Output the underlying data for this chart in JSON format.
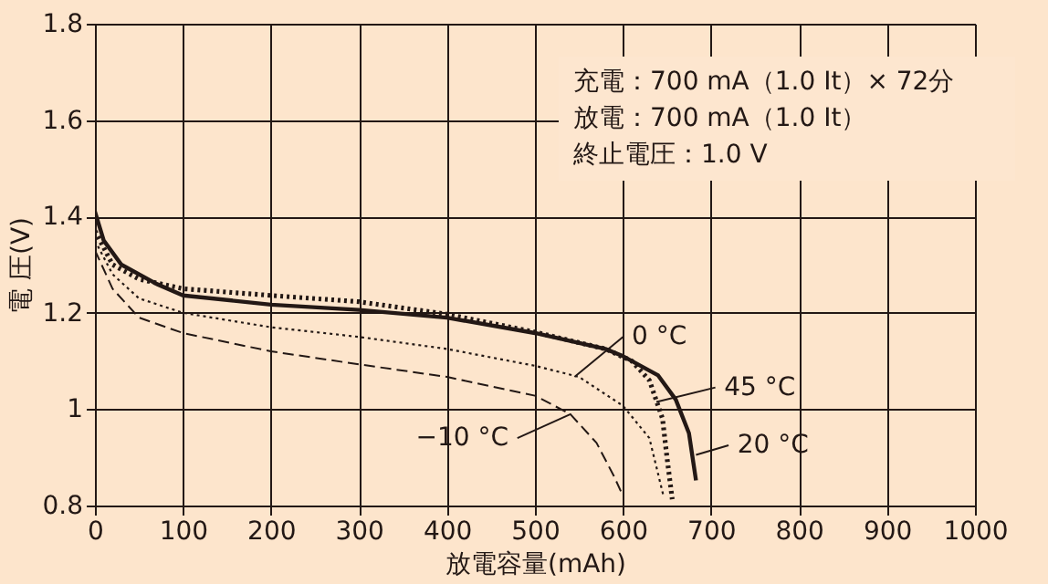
{
  "chart_data": {
    "type": "line",
    "xlabel": "放電容量(mAh)",
    "ylabel": "電 圧(V)",
    "xlim": [
      0,
      1000
    ],
    "xticks": [
      0,
      100,
      200,
      300,
      400,
      500,
      600,
      700,
      800,
      900,
      {
        "value": 1000,
        "label": "1000"
      }
    ],
    "ylim": [
      0.8,
      1.8
    ],
    "yticks": [
      0.8,
      {
        "value": 1,
        "label": "1"
      },
      1.2,
      1.4,
      1.6,
      1.8
    ],
    "grid": true,
    "marker": "none",
    "series": [
      {
        "color": "#231815",
        "line_style": "solid",
        "x": [
          0,
          10,
          30,
          70,
          100,
          200,
          300,
          400,
          500,
          580,
          600,
          640,
          660,
          675,
          683
        ],
        "values": [
          1.41,
          1.35,
          1.3,
          1.26,
          1.236,
          1.217,
          1.206,
          1.19,
          1.158,
          1.125,
          1.11,
          1.07,
          1.02,
          0.95,
          0.852
        ]
      },
      {
        "color": "#231815",
        "line_style": "dotted",
        "x": [
          0,
          20,
          50,
          100,
          200,
          300,
          400,
          500,
          580,
          610,
          630,
          645,
          650,
          656
        ],
        "values": [
          1.37,
          1.3,
          1.27,
          1.25,
          1.236,
          1.223,
          1.197,
          1.16,
          1.125,
          1.1,
          1.06,
          0.98,
          0.9,
          0.813
        ]
      },
      {
        "color": "#231815",
        "line_style": "dotted",
        "x": [
          0,
          20,
          50,
          100,
          200,
          300,
          400,
          500,
          550,
          600,
          630,
          646
        ],
        "values": [
          1.35,
          1.28,
          1.23,
          1.2,
          1.17,
          1.15,
          1.125,
          1.09,
          1.067,
          1.007,
          0.94,
          0.82
        ]
      },
      {
        "color": "#231815",
        "line_style": "dashed",
        "x": [
          0,
          20,
          50,
          100,
          200,
          300,
          400,
          500,
          540,
          570,
          590,
          600
        ],
        "values": [
          1.33,
          1.25,
          1.19,
          1.158,
          1.12,
          1.093,
          1.067,
          1.028,
          0.99,
          0.93,
          0.86,
          0.82
        ]
      }
    ],
    "annotations": [
      "充電：700 mA（1.0 It）× 72分",
      "放電：700 mA（1.0 It）",
      "終止電圧：1.0 V",
      {
        "text": "0 °C",
        "x": 545,
        "y": 1.067
      },
      {
        "text": "45 °C",
        "x": 638,
        "y": 1.015
      },
      {
        "text": "20 °C",
        "x": 683,
        "y": 0.905
      },
      {
        "text": "−10 °C",
        "x": 541,
        "y": 0.99
      }
    ]
  }
}
